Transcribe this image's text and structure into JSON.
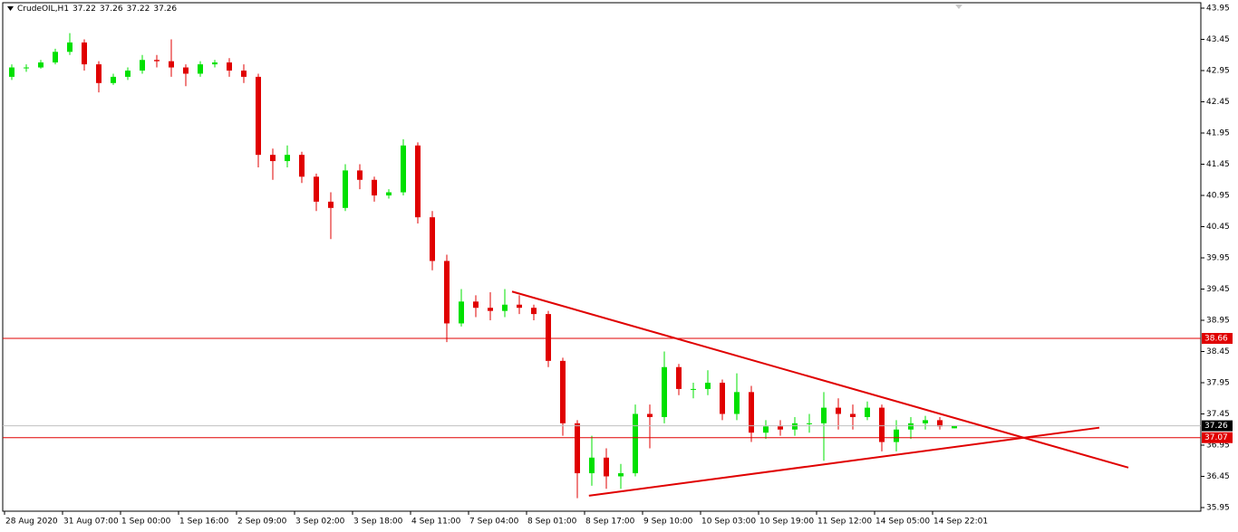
{
  "chart_data": {
    "type": "candlestick",
    "symbol": "CrudeOIL,H1",
    "quote": [
      37.22,
      37.26,
      37.22,
      37.26
    ],
    "up_color": "#00e000",
    "down_color": "#e00000",
    "categories": [
      "28 Aug 2020",
      null,
      null,
      null,
      "31 Aug 07:00",
      null,
      null,
      null,
      "1 Sep 00:00",
      null,
      null,
      null,
      "1 Sep 16:00",
      null,
      null,
      null,
      "2 Sep 09:00",
      null,
      null,
      null,
      "3 Sep 02:00",
      null,
      null,
      null,
      "3 Sep 18:00",
      null,
      null,
      null,
      "4 Sep 11:00",
      null,
      null,
      null,
      "7 Sep 04:00",
      null,
      null,
      null,
      "8 Sep 01:00",
      null,
      null,
      null,
      "8 Sep 17:00",
      null,
      null,
      null,
      "9 Sep 10:00",
      null,
      null,
      null,
      "10 Sep 03:00",
      null,
      null,
      null,
      "10 Sep 19:00",
      null,
      null,
      null,
      "11 Sep 12:00",
      null,
      null,
      null,
      "14 Sep 05:00",
      null,
      null,
      null,
      "14 Sep 22:01",
      null
    ],
    "ohlc": [
      [
        42.85,
        43.05,
        42.8,
        43.0
      ],
      [
        43.0,
        43.05,
        42.93,
        43.0
      ],
      [
        43.0,
        43.12,
        42.98,
        43.08
      ],
      [
        43.08,
        43.3,
        43.05,
        43.25
      ],
      [
        43.25,
        43.55,
        43.2,
        43.4
      ],
      [
        43.4,
        43.45,
        42.95,
        43.05
      ],
      [
        43.05,
        43.1,
        42.6,
        42.75
      ],
      [
        42.75,
        42.9,
        42.72,
        42.85
      ],
      [
        42.85,
        43.0,
        42.8,
        42.95
      ],
      [
        42.95,
        43.2,
        42.9,
        43.12
      ],
      [
        43.12,
        43.2,
        43.0,
        43.1
      ],
      [
        43.1,
        43.45,
        42.85,
        43.0
      ],
      [
        43.0,
        43.05,
        42.7,
        42.9
      ],
      [
        42.9,
        43.1,
        42.85,
        43.05
      ],
      [
        43.05,
        43.12,
        43.0,
        43.08
      ],
      [
        43.08,
        43.15,
        42.85,
        42.95
      ],
      [
        42.95,
        43.05,
        42.75,
        42.85
      ],
      [
        42.85,
        42.9,
        41.4,
        41.6
      ],
      [
        41.6,
        41.7,
        41.2,
        41.5
      ],
      [
        41.5,
        41.75,
        41.4,
        41.6
      ],
      [
        41.6,
        41.65,
        41.15,
        41.25
      ],
      [
        41.25,
        41.3,
        40.7,
        40.85
      ],
      [
        40.85,
        41.0,
        40.25,
        40.75
      ],
      [
        40.75,
        41.45,
        40.7,
        41.35
      ],
      [
        41.35,
        41.45,
        41.05,
        41.2
      ],
      [
        41.2,
        41.25,
        40.85,
        40.95
      ],
      [
        40.95,
        41.05,
        40.9,
        41.0
      ],
      [
        41.0,
        41.85,
        40.95,
        41.75
      ],
      [
        41.75,
        41.8,
        40.5,
        40.6
      ],
      [
        40.6,
        40.7,
        39.75,
        39.9
      ],
      [
        39.9,
        40.0,
        38.6,
        38.9
      ],
      [
        38.9,
        39.45,
        38.85,
        39.25
      ],
      [
        39.25,
        39.35,
        39.0,
        39.15
      ],
      [
        39.15,
        39.4,
        38.95,
        39.1
      ],
      [
        39.1,
        39.45,
        39.0,
        39.2
      ],
      [
        39.2,
        39.35,
        39.05,
        39.15
      ],
      [
        39.15,
        39.2,
        38.95,
        39.05
      ],
      [
        39.05,
        39.1,
        38.2,
        38.3
      ],
      [
        38.3,
        38.35,
        37.1,
        37.3
      ],
      [
        37.3,
        37.35,
        36.1,
        36.5
      ],
      [
        36.5,
        37.1,
        36.3,
        36.75
      ],
      [
        36.75,
        36.9,
        36.25,
        36.45
      ],
      [
        36.45,
        36.65,
        36.25,
        36.5
      ],
      [
        36.5,
        37.6,
        36.45,
        37.45
      ],
      [
        37.45,
        37.6,
        36.9,
        37.4
      ],
      [
        37.4,
        38.45,
        37.3,
        38.2
      ],
      [
        38.2,
        38.25,
        37.75,
        37.85
      ],
      [
        37.85,
        37.95,
        37.7,
        37.85
      ],
      [
        37.85,
        38.15,
        37.75,
        37.95
      ],
      [
        37.95,
        38.0,
        37.35,
        37.45
      ],
      [
        37.45,
        38.1,
        37.35,
        37.8
      ],
      [
        37.8,
        37.9,
        37.0,
        37.15
      ],
      [
        37.15,
        37.35,
        37.05,
        37.25
      ],
      [
        37.25,
        37.35,
        37.1,
        37.2
      ],
      [
        37.2,
        37.4,
        37.1,
        37.3
      ],
      [
        37.3,
        37.45,
        37.15,
        37.3
      ],
      [
        37.3,
        37.8,
        36.7,
        37.55
      ],
      [
        37.55,
        37.7,
        37.2,
        37.45
      ],
      [
        37.45,
        37.6,
        37.2,
        37.4
      ],
      [
        37.4,
        37.65,
        37.35,
        37.55
      ],
      [
        37.55,
        37.6,
        36.85,
        37.0
      ],
      [
        37.0,
        37.35,
        36.85,
        37.2
      ],
      [
        37.2,
        37.4,
        37.05,
        37.3
      ],
      [
        37.3,
        37.42,
        37.2,
        37.35
      ],
      [
        37.35,
        37.4,
        37.2,
        37.25
      ],
      [
        37.22,
        37.26,
        37.22,
        37.26
      ]
    ],
    "ylim": [
      35.95,
      43.95
    ],
    "yticks": [
      43.95,
      43.45,
      42.95,
      42.45,
      41.95,
      41.45,
      40.95,
      40.45,
      39.95,
      39.45,
      38.95,
      38.45,
      37.95,
      37.45,
      36.95,
      36.45,
      35.95
    ],
    "hlines": [
      {
        "value": 38.66,
        "color": "#e00000"
      },
      {
        "value": 37.07,
        "color": "#e00000"
      },
      {
        "value": 37.26,
        "color": "#c0c0c0"
      }
    ],
    "trendlines": [
      {
        "x": [
          34.5,
          77
        ],
        "y": [
          39.41,
          36.59
        ],
        "color": "#e00000"
      },
      {
        "x": [
          39.8,
          75
        ],
        "y": [
          36.14,
          37.23
        ],
        "color": "#e00000"
      }
    ]
  }
}
